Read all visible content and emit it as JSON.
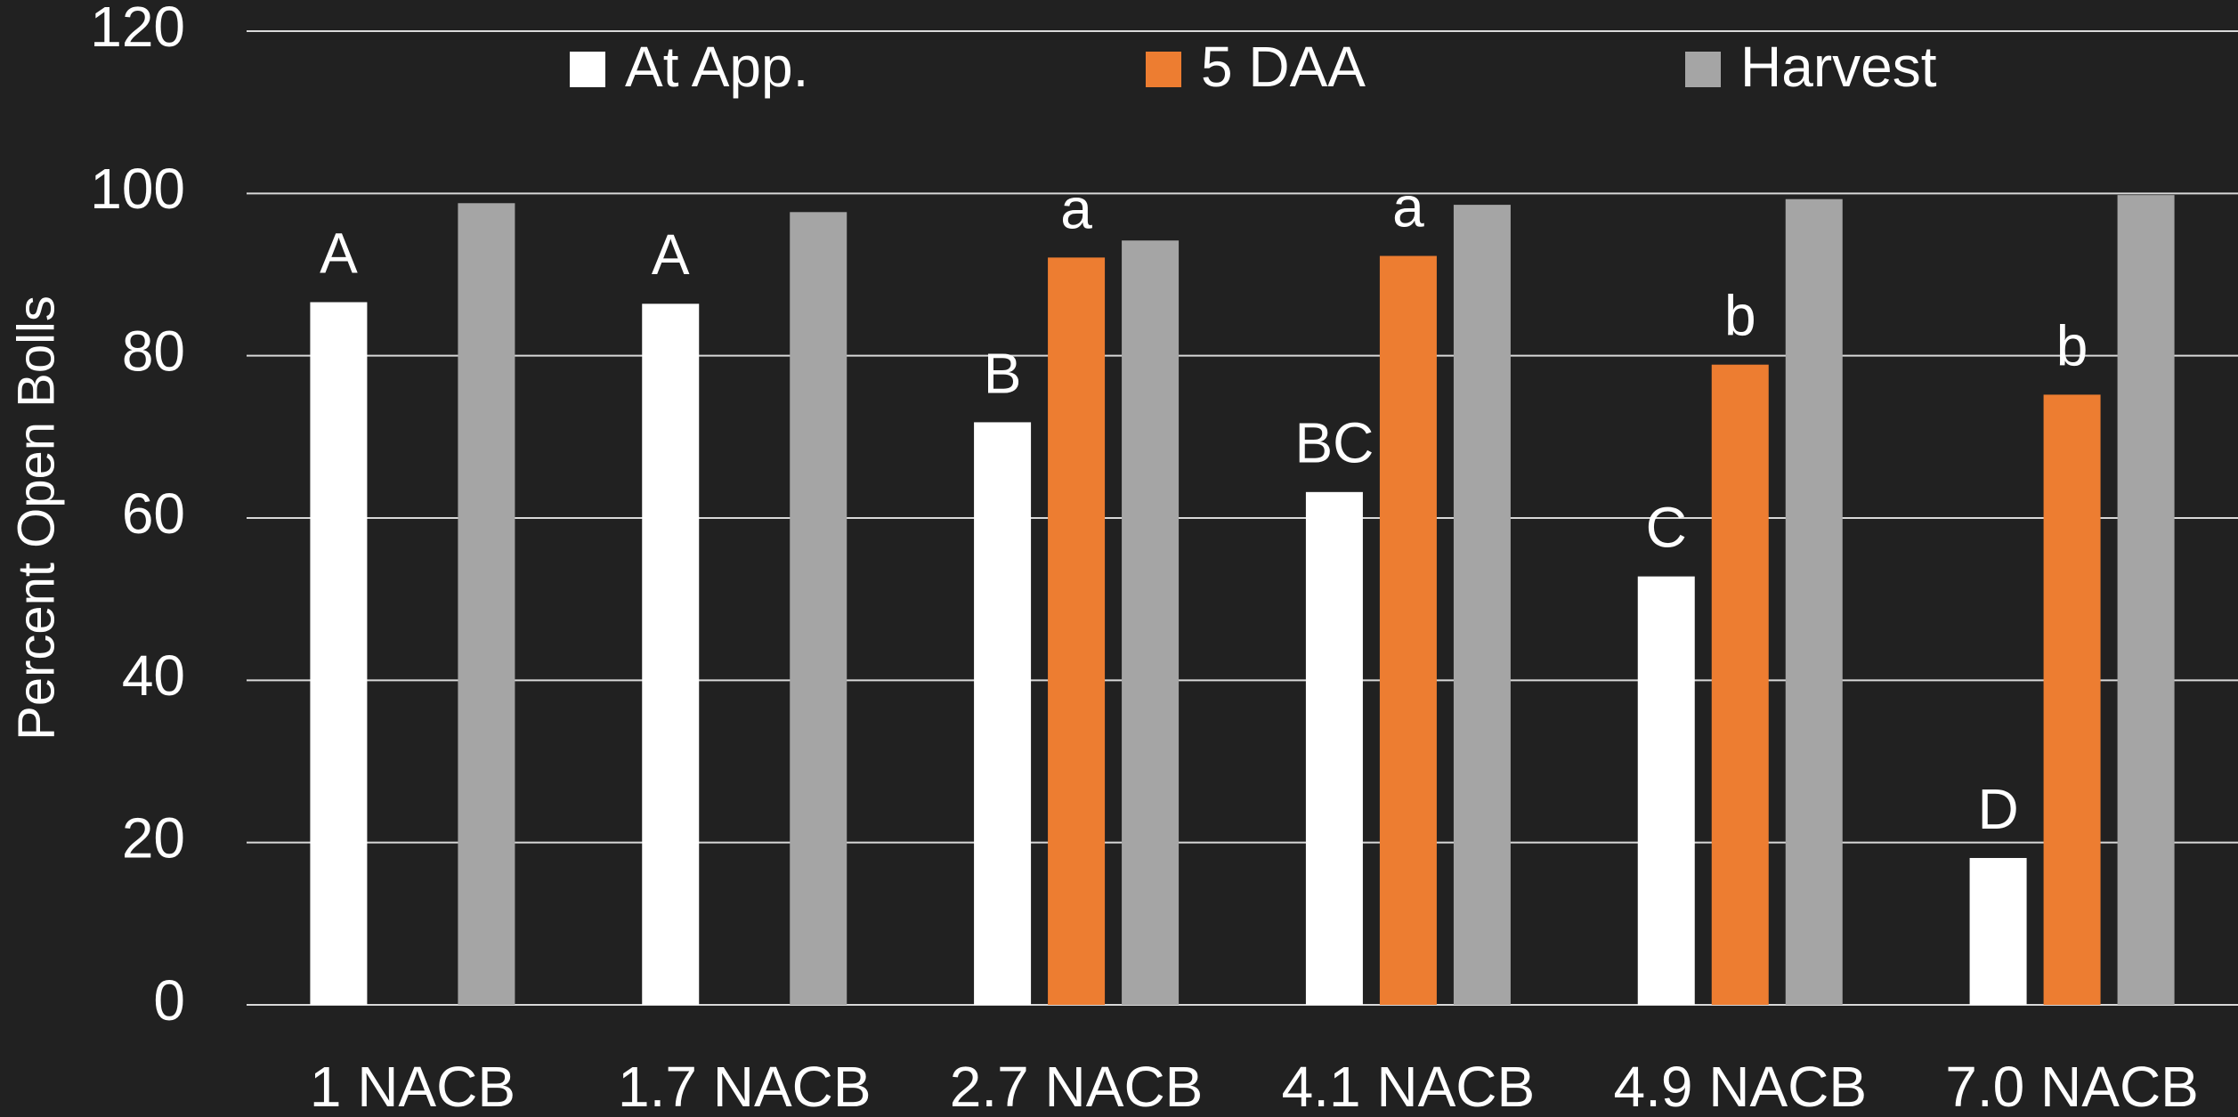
{
  "chart_data": {
    "type": "bar",
    "y_axis_label": "Percent Open Bolls",
    "categories": [
      "1 NACB",
      "1.7 NACB",
      "2.7 NACB",
      "4.1 NACB",
      "4.9 NACB",
      "7.0 NACB"
    ],
    "series": [
      {
        "name": "At App.",
        "color": "#ffffff",
        "values": [
          86.6,
          86.4,
          71.8,
          63.2,
          52.8,
          18.1
        ],
        "letters": [
          "A",
          "A",
          "B",
          "BC",
          "C",
          "D"
        ]
      },
      {
        "name": "5 DAA",
        "color": "#ed7d31",
        "values": [
          null,
          null,
          92.1,
          92.3,
          78.9,
          75.2
        ],
        "letters": [
          null,
          null,
          "a",
          "a",
          "b",
          "b"
        ]
      },
      {
        "name": "Harvest",
        "color": "#a5a5a5",
        "values": [
          98.8,
          97.7,
          94.2,
          98.6,
          99.3,
          99.8
        ]
      }
    ],
    "ylim": [
      0,
      120
    ],
    "yticks": [
      0,
      20,
      40,
      60,
      80,
      100,
      120
    ],
    "grid": true,
    "legend": "top"
  }
}
